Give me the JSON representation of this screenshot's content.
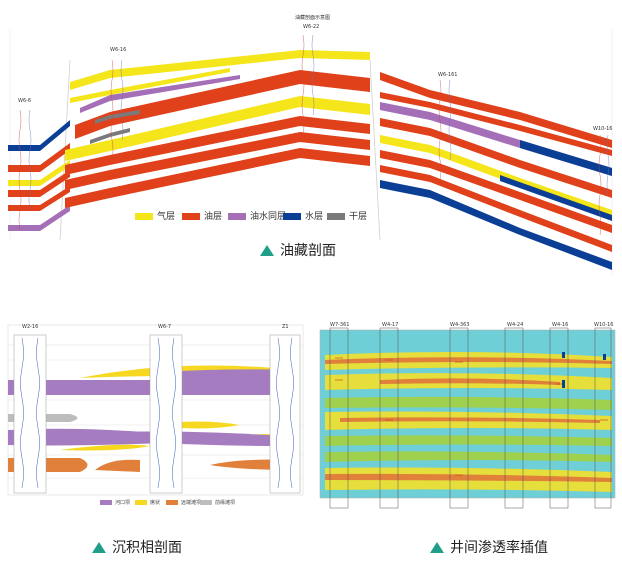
{
  "top_panel": {
    "title_small": "油藏剖面示意图",
    "wells": [
      "W6-6",
      "W6-16",
      "W6-22",
      "W6-161",
      "W10-16"
    ],
    "legend": [
      {
        "label": "气层",
        "color": "#f5e51b"
      },
      {
        "label": "油层",
        "color": "#e0401a"
      },
      {
        "label": "油水同层",
        "color": "#a56fb8"
      },
      {
        "label": "水层",
        "color": "#0b3f96"
      },
      {
        "label": "干层",
        "color": "#7a7a7a"
      }
    ],
    "caption": "油藏剖面"
  },
  "bottom_left": {
    "wells": [
      "W2-16",
      "W6-7",
      "Z1"
    ],
    "legend": [
      {
        "label": "河口坝",
        "color": "#a57cc0"
      },
      {
        "label": "席状",
        "color": "#f6d820"
      },
      {
        "label": "远端滩坝",
        "color": "#e0803a"
      },
      {
        "label": "前缘滩坝",
        "color": "#bdbdbd"
      }
    ],
    "caption": "沉积相剖面"
  },
  "bottom_right": {
    "wells": [
      "W7-361",
      "W4-17",
      "W4-363",
      "W4-24",
      "W4-16",
      "W10-16"
    ],
    "caption": "井间渗透率插值"
  },
  "colors": {
    "gas": "#f5e51b",
    "oil": "#e0401a",
    "oilwater": "#a56fb8",
    "water": "#0b3f96",
    "dry": "#7a7a7a",
    "teal": "#1f9f8a",
    "perm_bg": "#6fcfd6"
  }
}
